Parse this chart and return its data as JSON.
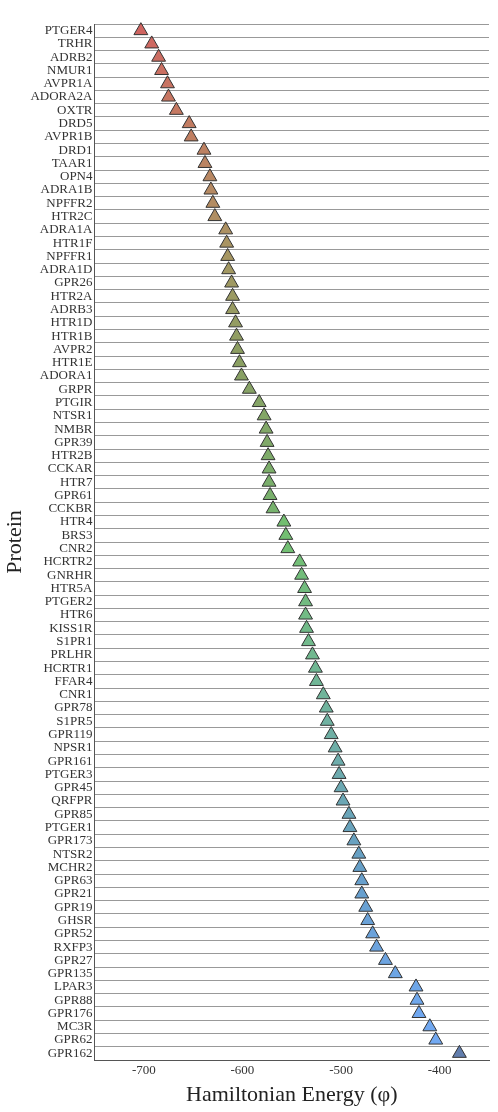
{
  "chart_data": {
    "type": "scatter",
    "orientation": "horizontal",
    "xlabel": "Hamiltonian Energy (φ)",
    "ylabel": "Protein",
    "categories": [
      "PTGER4",
      "TRHR",
      "ADRB2",
      "NMUR1",
      "AVPR1A",
      "ADORA2A",
      "OXTR",
      "DRD5",
      "AVPR1B",
      "DRD1",
      "TAAR1",
      "OPN4",
      "ADRA1B",
      "NPFFR2",
      "HTR2C",
      "ADRA1A",
      "HTR1F",
      "NPFFR1",
      "ADRA1D",
      "GPR26",
      "HTR2A",
      "ADRB3",
      "HTR1D",
      "HTR1B",
      "AVPR2",
      "HTR1E",
      "ADORA1",
      "GRPR",
      "PTGIR",
      "NTSR1",
      "NMBR",
      "GPR39",
      "HTR2B",
      "CCKAR",
      "HTR7",
      "GPR61",
      "CCKBR",
      "HTR4",
      "BRS3",
      "CNR2",
      "HCRTR2",
      "GNRHR",
      "HTR5A",
      "PTGER2",
      "HTR6",
      "KISS1R",
      "S1PR1",
      "PRLHR",
      "HCRTR1",
      "FFAR4",
      "CNR1",
      "GPR78",
      "S1PR5",
      "GPR119",
      "NPSR1",
      "GPR161",
      "PTGER3",
      "GPR45",
      "QRFPR",
      "GPR85",
      "PTGER1",
      "GPR173",
      "NTSR2",
      "MCHR2",
      "GPR63",
      "GPR21",
      "GPR19",
      "GHSR",
      "GPR52",
      "RXFP3",
      "GPR27",
      "GPR135",
      "LPAR3",
      "GPR88",
      "GPR176",
      "MC3R",
      "GPR62",
      "GPR162"
    ],
    "values": [
      -703,
      -692,
      -685,
      -682,
      -676,
      -675,
      -667,
      -654,
      -652,
      -639,
      -638,
      -633,
      -632,
      -630,
      -628,
      -617,
      -616,
      -615,
      -614,
      -611,
      -610,
      -610,
      -607,
      -606,
      -605,
      -603,
      -601,
      -593,
      -583,
      -578,
      -576,
      -575,
      -574,
      -573,
      -573,
      -572,
      -569,
      -558,
      -556,
      -554,
      -542,
      -540,
      -537,
      -536,
      -536,
      -535,
      -533,
      -529,
      -526,
      -525,
      -518,
      -515,
      -514,
      -510,
      -506,
      -503,
      -502,
      -500,
      -498,
      -492,
      -491,
      -487,
      -482,
      -481,
      -479,
      -479,
      -475,
      -473,
      -468,
      -464,
      -455,
      -445,
      -424,
      -423,
      -421,
      -410,
      -404,
      -380
    ],
    "colors": [
      "#c84c48",
      "#c6524a",
      "#c4564a",
      "#c25a4a",
      "#c05e4a",
      "#be614a",
      "#bc644a",
      "#b9684a",
      "#b66b4a",
      "#b36e4a",
      "#b0714a",
      "#ad744a",
      "#aa774a",
      "#a77a4a",
      "#a47d4a",
      "#a0804a",
      "#9c834a",
      "#98864a",
      "#94884a",
      "#90894a",
      "#8c8b4a",
      "#888c4a",
      "#848d4a",
      "#808e4a",
      "#7c8f4a",
      "#78904a",
      "#76914c",
      "#74944e",
      "#72964e",
      "#70984f",
      "#6e9a50",
      "#6c9c51",
      "#6a9e52",
      "#68a053",
      "#66a254",
      "#64a455",
      "#62a656",
      "#5eb45a",
      "#5db55c",
      "#5cb55e",
      "#5cb462",
      "#5cb366",
      "#5cb26a",
      "#5cb16e",
      "#5cb072",
      "#5baf76",
      "#5bae7a",
      "#5bad7e",
      "#5aac82",
      "#5aab86",
      "#5aa98a",
      "#5aa78e",
      "#5aa592",
      "#59a396",
      "#58a19a",
      "#579f9e",
      "#569da2",
      "#559ba6",
      "#5499aa",
      "#5397ae",
      "#5295b2",
      "#5193b6",
      "#5091ba",
      "#4f90be",
      "#5090c4",
      "#5191c8",
      "#5292cc",
      "#5393d0",
      "#5494d4",
      "#5595d8",
      "#5696dc",
      "#5797e0",
      "#5898e4",
      "#5999e8",
      "#5a9aec",
      "#5b9bee",
      "#5c9cf0",
      "#4a6aa0"
    ],
    "xlim": [
      -750,
      -350
    ],
    "xticks": [
      -700,
      -600,
      -500,
      -400
    ],
    "grid": "y",
    "marker": "triangle"
  }
}
